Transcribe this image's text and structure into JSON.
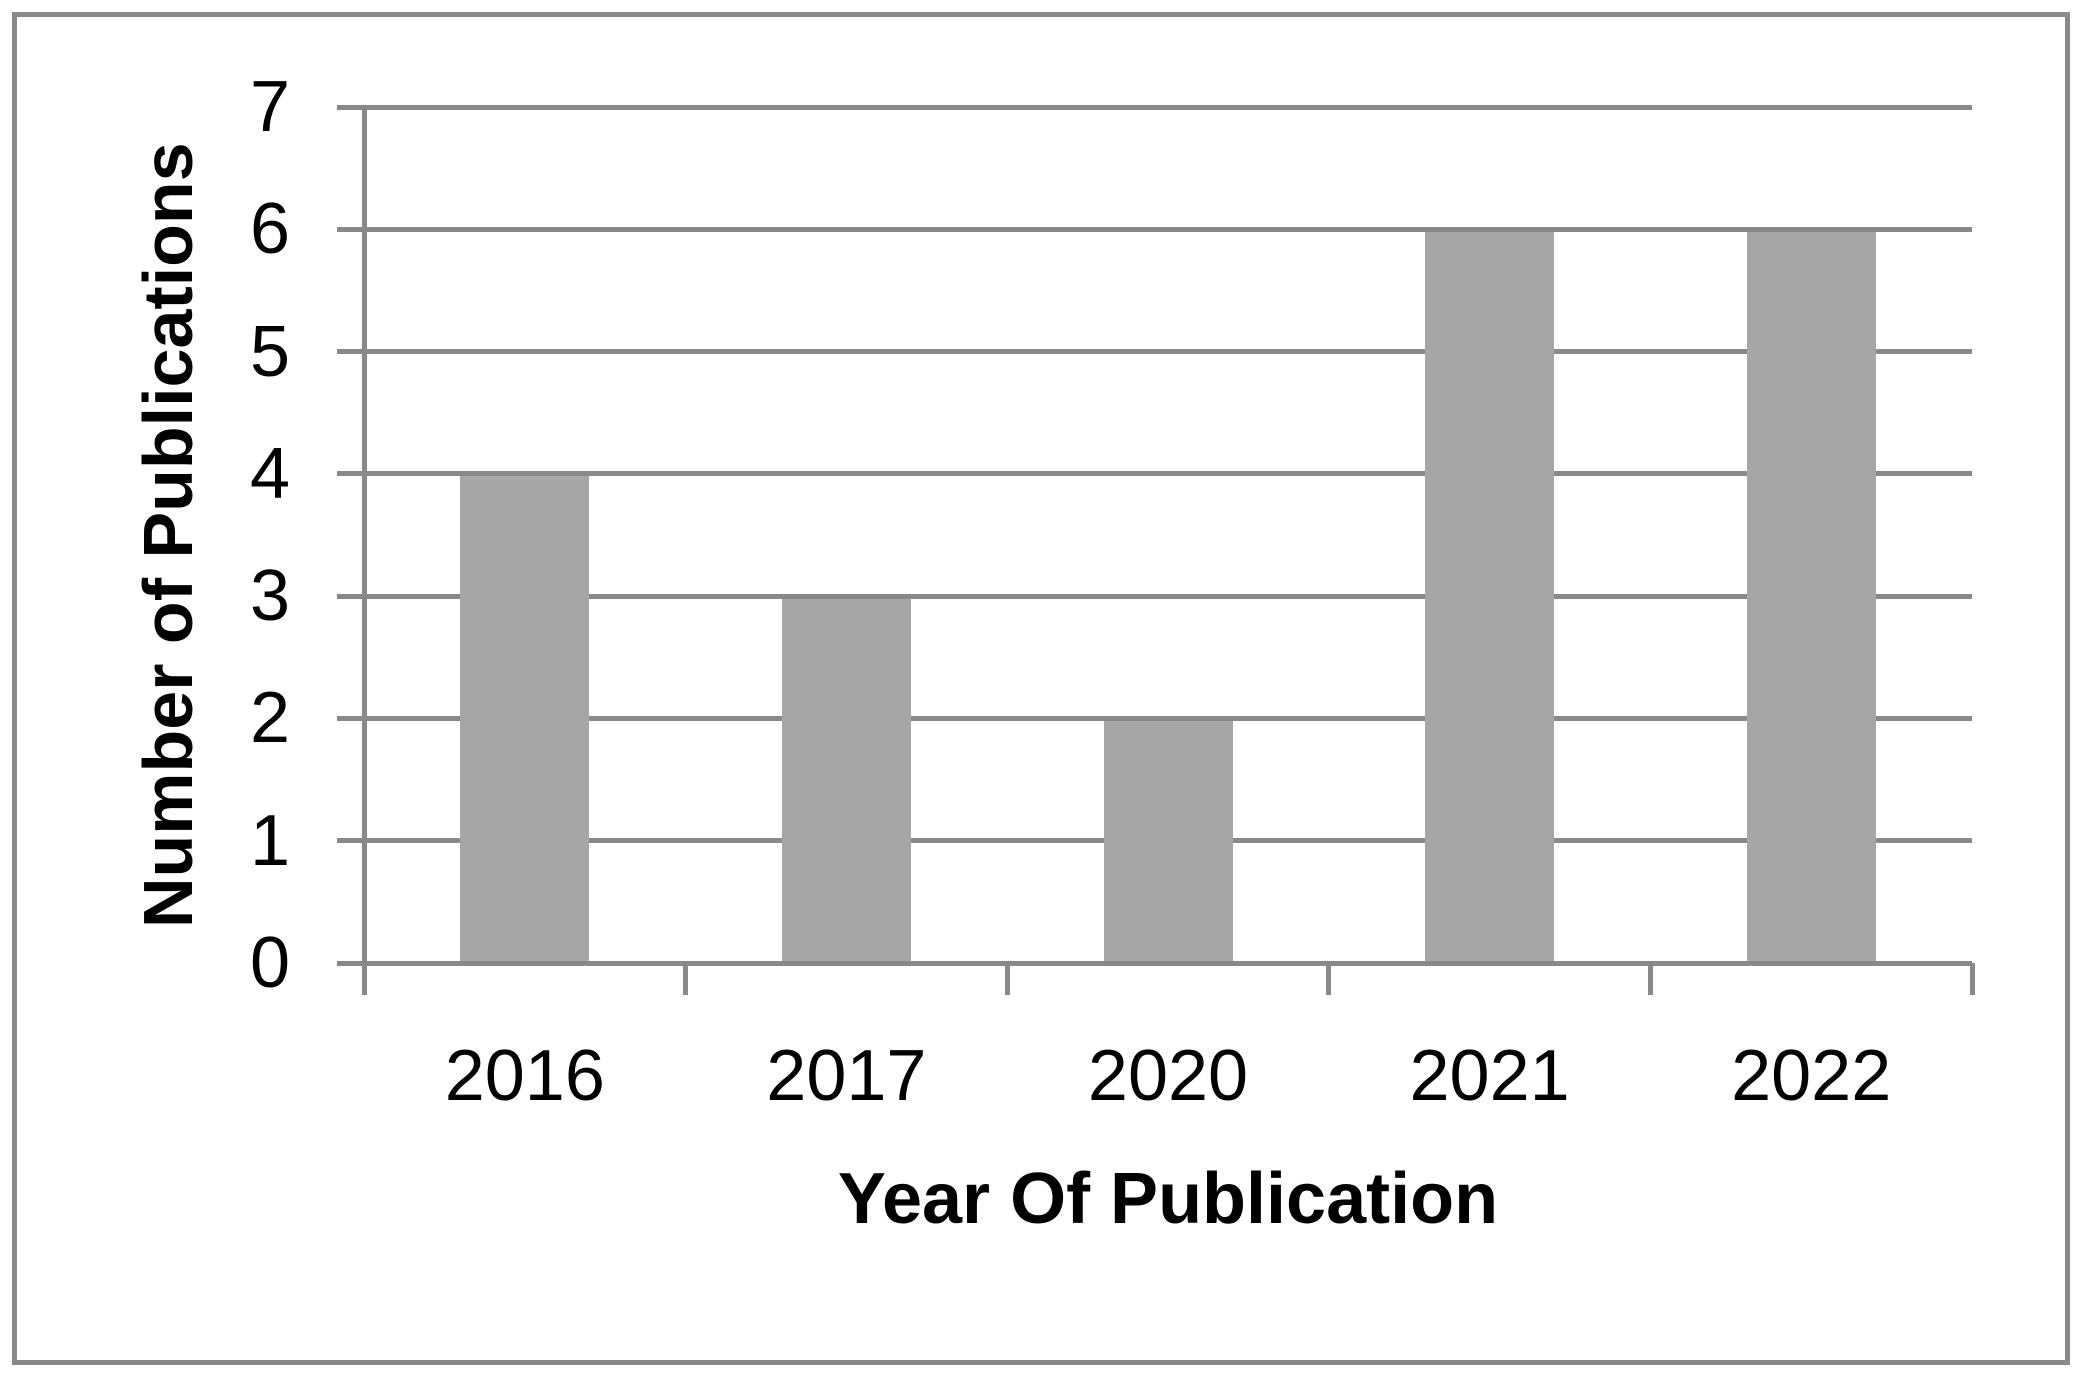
{
  "chart_data": {
    "type": "bar",
    "categories": [
      "2016",
      "2017",
      "2020",
      "2021",
      "2022"
    ],
    "values": [
      4,
      3,
      2,
      6,
      6
    ],
    "title": "",
    "xlabel": "Year Of Publication",
    "ylabel": "Number of Publications",
    "ylim": [
      0,
      7
    ],
    "yticks": [
      0,
      1,
      2,
      3,
      4,
      5,
      6,
      7
    ],
    "grid": true,
    "legend": "none",
    "bar_color": "#a6a6a6",
    "axis_color": "#898989",
    "border_color": "#898989",
    "text_color": "#000000",
    "background_color": "#ffffff"
  }
}
